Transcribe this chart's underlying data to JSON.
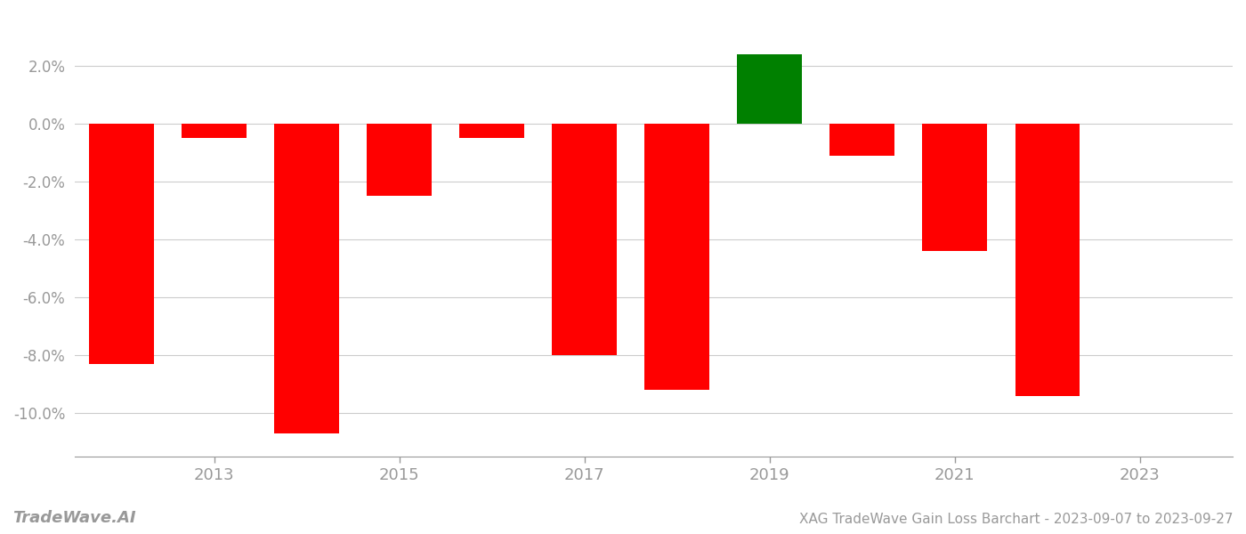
{
  "years": [
    2012,
    2013,
    2014,
    2015,
    2016,
    2017,
    2018,
    2019,
    2020,
    2021,
    2022
  ],
  "values": [
    -0.083,
    -0.005,
    -0.107,
    -0.025,
    -0.005,
    -0.08,
    -0.092,
    0.024,
    -0.011,
    -0.044,
    -0.094
  ],
  "colors": [
    "#ff0000",
    "#ff0000",
    "#ff0000",
    "#ff0000",
    "#ff0000",
    "#ff0000",
    "#ff0000",
    "#008000",
    "#ff0000",
    "#ff0000",
    "#ff0000"
  ],
  "title": "XAG TradeWave Gain Loss Barchart - 2023-09-07 to 2023-09-27",
  "watermark": "TradeWave.AI",
  "ylim": [
    -0.115,
    0.038
  ],
  "yticks": [
    -0.1,
    -0.08,
    -0.06,
    -0.04,
    -0.02,
    0.0,
    0.02
  ],
  "xticks": [
    2013,
    2015,
    2017,
    2019,
    2021,
    2023
  ],
  "xlim": [
    2011.5,
    2024.0
  ],
  "background_color": "#ffffff",
  "grid_color": "#cccccc",
  "axis_color": "#999999",
  "tick_color": "#999999",
  "bar_width": 0.7
}
